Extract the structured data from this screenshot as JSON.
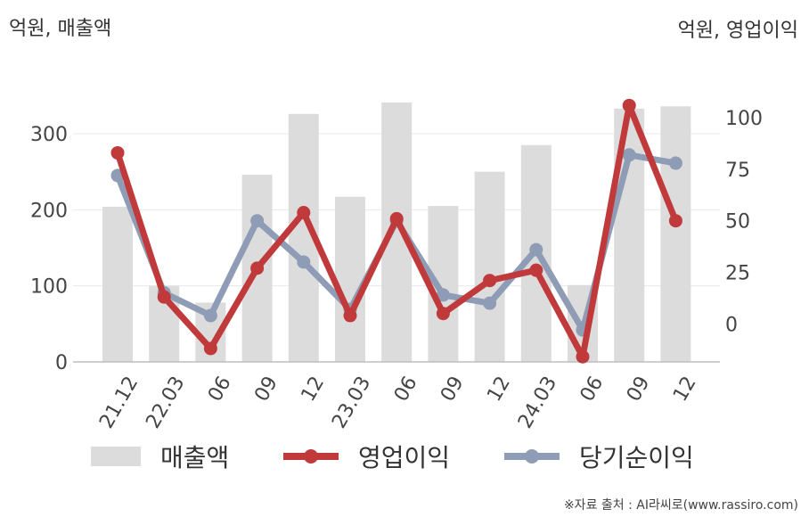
{
  "unit_left": "억원, 매출액",
  "unit_right": "억원, 영업이익",
  "source": "※자료 출처 : AI라씨로(www.rassiro.com)",
  "chart_data": {
    "type": "bar+line",
    "categories": [
      "21.12",
      "22.03",
      "06",
      "09",
      "12",
      "23.03",
      "06",
      "09",
      "12",
      "24.03",
      "06",
      "09",
      "12"
    ],
    "bar_series": {
      "name": "매출액",
      "axis": "left",
      "color": "#dcdcdc",
      "values": [
        204,
        100,
        78,
        246,
        326,
        217,
        341,
        205,
        250,
        285,
        101,
        333,
        336
      ]
    },
    "line_series": [
      {
        "name": "영업이익",
        "axis": "right",
        "color": "#c0393b",
        "values": [
          83,
          13,
          -12,
          27,
          54,
          4,
          51,
          5,
          21,
          26,
          -16,
          106,
          50
        ]
      },
      {
        "name": "당기순이익",
        "axis": "right",
        "color": "#8f9cb6",
        "values": [
          72,
          15,
          4,
          50,
          30,
          7,
          50,
          14,
          10,
          36,
          -3,
          82,
          78
        ]
      }
    ],
    "left_axis": {
      "ticks": [
        "0",
        "100",
        "200",
        "300"
      ],
      "range": [
        0,
        375
      ]
    },
    "right_axis": {
      "ticks": [
        "0",
        "25",
        "50",
        "75",
        "100"
      ],
      "range": [
        -18.5,
        120
      ]
    },
    "grid": true,
    "legend": [
      "매출액",
      "영업이익",
      "당기순이익"
    ],
    "legend_position": "bottom"
  }
}
